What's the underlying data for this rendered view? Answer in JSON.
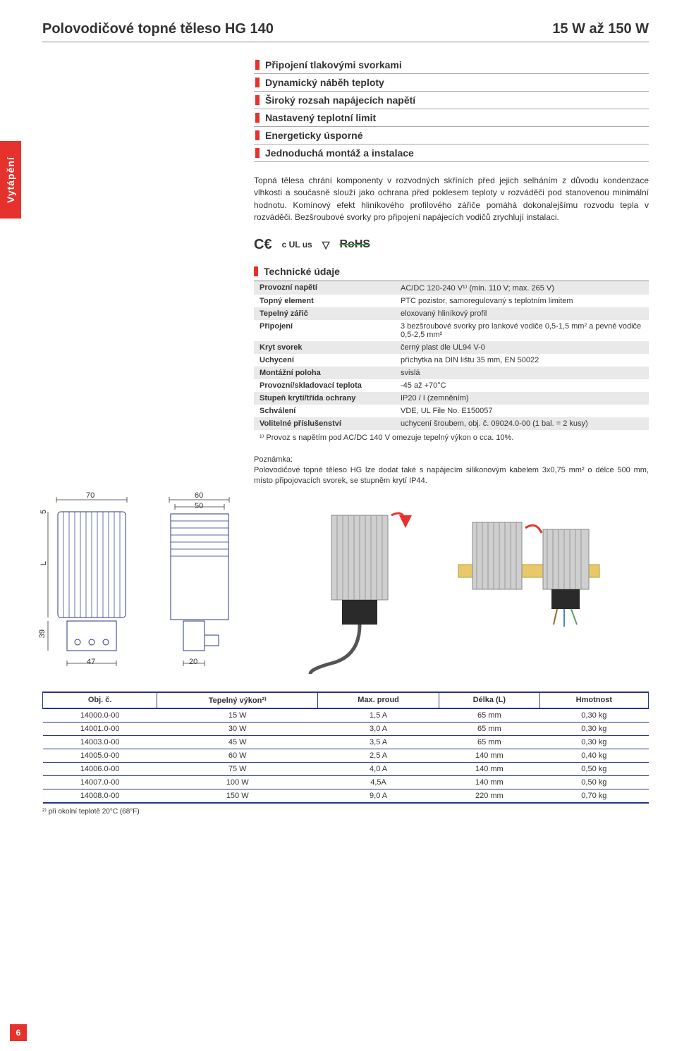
{
  "sideTab": "Vytápění",
  "title": {
    "left": "Polovodičové topné těleso HG 140",
    "right": "15 W až 150 W"
  },
  "features": [
    "Připojení tlakovými svorkami",
    "Dynamický náběh teploty",
    "Široký rozsah napájecích napětí",
    "Nastavený teplotní limit",
    "Energeticky úsporné",
    "Jednoduchá montáž a instalace"
  ],
  "intro": "Topná tělesa chrání komponenty v rozvodných skříních před jejich selháním z důvodu kondenzace vlhkosti a současně slouží jako ochrana před poklesem teploty v rozváděči pod stanovenou minimální hodnotu. Komínový efekt hliníkového profilového zářiče pomáhá dokonalejšímu rozvodu tepla v rozváděči. Bezšroubové svorky pro připojení napájecích vodičů zrychlují instalaci.",
  "certs": {
    "ce": "CE",
    "ul": "c UL us",
    "vde": "VDE",
    "rohs": "RoHS"
  },
  "specHeader": "Technické údaje",
  "specs": [
    {
      "k": "Provozní napětí",
      "v": "AC/DC 120-240 V¹⁾ (min. 110 V; max. 265 V)"
    },
    {
      "k": "Topný element",
      "v": "PTC pozistor, samoregulovaný s teplotním limitem"
    },
    {
      "k": "Tepelný zářič",
      "v": "eloxovaný hliníkový profil"
    },
    {
      "k": "Připojení",
      "v": "3 bezšroubové svorky pro lankové vodiče 0,5-1,5 mm² a pevné vodiče 0,5-2,5 mm²"
    },
    {
      "k": "Kryt svorek",
      "v": "černý plast dle UL94 V-0"
    },
    {
      "k": "Uchycení",
      "v": "příchytka na DIN lištu 35 mm, EN 50022"
    },
    {
      "k": "Montážní poloha",
      "v": "svislá"
    },
    {
      "k": "Provozní/skladovací teplota",
      "v": "-45 až +70°C"
    },
    {
      "k": "Stupeň krytí/třída ochrany",
      "v": "IP20 / I (zemněním)"
    },
    {
      "k": "Schválení",
      "v": "VDE, UL File No. E150057"
    },
    {
      "k": "Volitelné příslušenství",
      "v": "uchycení šroubem, obj. č. 09024.0-00 (1 bal. = 2 kusy)"
    }
  ],
  "specFootnote": "¹⁾ Provoz s napětím pod AC/DC 140 V omezuje tepelný výkon o cca. 10%.",
  "noteTitle": "Poznámka:",
  "noteBody": "Polovodičové topné těleso HG lze dodat také s napájecím silikonovým kabelem 3x0,75 mm² o délce 500 mm, místo připojovacích svorek, se stupněm krytí IP44.",
  "dims": {
    "front_w": "70",
    "front_bottom": "47",
    "side_outer": "60",
    "side_inner": "50",
    "side_bottom": "20",
    "top_off": "5",
    "length": "L",
    "foot": "39"
  },
  "orderHeaders": [
    "Obj. č.",
    "Tepelný výkon²⁾",
    "Max. proud",
    "Délka (L)",
    "Hmotnost"
  ],
  "orderRows": [
    [
      "14000.0-00",
      "15 W",
      "1,5 A",
      "65 mm",
      "0,30 kg"
    ],
    [
      "14001.0-00",
      "30 W",
      "3,0 A",
      "65 mm",
      "0,30 kg"
    ],
    [
      "14003.0-00",
      "45 W",
      "3,5 A",
      "65 mm",
      "0,30 kg"
    ],
    [
      "14005.0-00",
      "60 W",
      "2,5 A",
      "140 mm",
      "0,40 kg"
    ],
    [
      "14006.0-00",
      "75 W",
      "4,0 A",
      "140 mm",
      "0,50 kg"
    ],
    [
      "14007.0-00",
      "100 W",
      "4,5A",
      "140 mm",
      "0,50 kg"
    ],
    [
      "14008.0-00",
      "150 W",
      "9,0 A",
      "220 mm",
      "0,70 kg"
    ]
  ],
  "orderFootnote": "²⁾ při okolní teplotě 20°C (68°F)",
  "pageNum": "6",
  "colors": {
    "accent": "#e5322d",
    "blue": "#28348a",
    "grayRow": "#e9e9e9"
  }
}
